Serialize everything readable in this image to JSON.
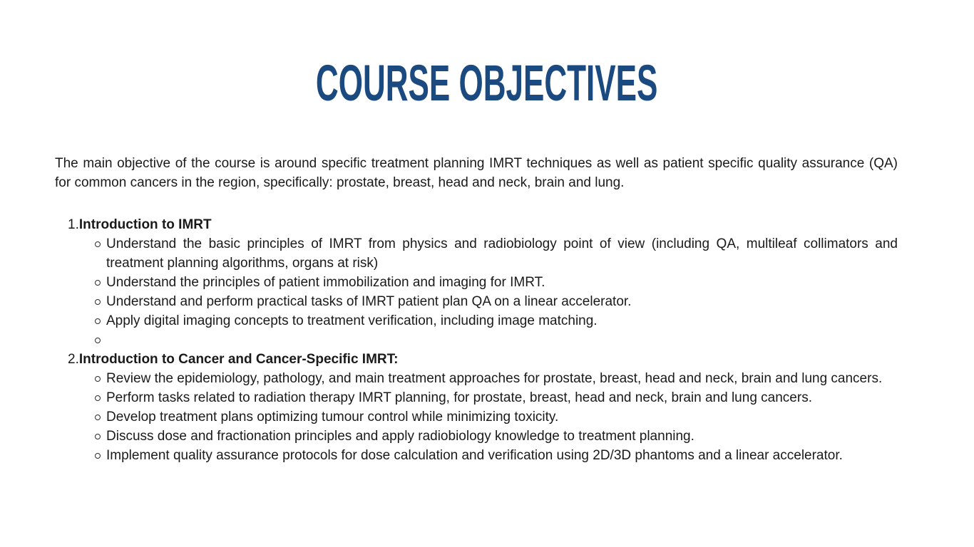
{
  "slide": {
    "title": "COURSE OBJECTIVES",
    "intro": "The main objective of the course is around specific treatment planning IMRT techniques as well as patient specific quality assurance (QA) for common cancers in the region, specifically: prostate, breast, head and neck, brain and lung.",
    "items": [
      {
        "number": "1.",
        "heading": "Introduction to IMRT",
        "bullets": [
          "Understand the basic principles of IMRT from physics and radiobiology point of view (including QA, multileaf collimators and treatment planning algorithms, organs at risk)",
          "Understand the principles of patient immobilization and imaging for IMRT.",
          "Understand and perform practical tasks of IMRT patient plan QA on a linear accelerator.",
          "Apply digital imaging concepts to treatment verification, including image matching.",
          ""
        ]
      },
      {
        "number": "2.",
        "heading": "Introduction to Cancer and Cancer-Specific IMRT:",
        "bullets": [
          "Review the epidemiology, pathology, and main treatment approaches for prostate, breast, head and neck, brain and lung cancers.",
          "Perform tasks related to radiation therapy IMRT planning, for prostate, breast, head and neck, brain and lung cancers.",
          "Develop treatment plans optimizing tumour control while minimizing toxicity.",
          "Discuss dose and fractionation principles and apply radiobiology knowledge to treatment planning.",
          "Implement quality assurance protocols for dose calculation and verification using 2D/3D phantoms and a linear accelerator."
        ]
      }
    ],
    "colors": {
      "title": "#1a4a80",
      "body": "#1a1a1a",
      "background": "#ffffff"
    }
  }
}
